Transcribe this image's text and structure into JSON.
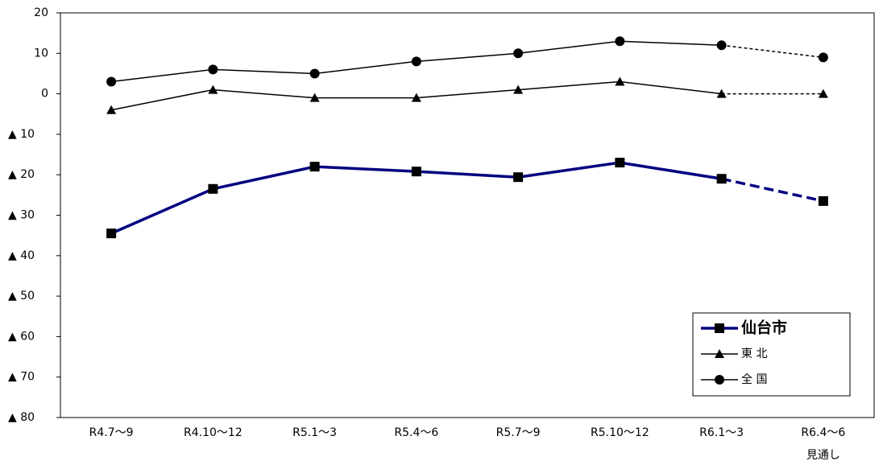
{
  "chart_data": {
    "type": "line",
    "categories": [
      "R4.7～9",
      "R4.10～12",
      "R5.1～3",
      "R5.4～6",
      "R5.7～9",
      "R5.10～12",
      "R6.1～3",
      "R6.4～6"
    ],
    "forecast_note": "見通し",
    "forecast_start": 6,
    "ylim": [
      -80,
      20
    ],
    "yticks": [
      20,
      10,
      0,
      {
        "value": -10,
        "label": "▲ 10"
      },
      {
        "value": -20,
        "label": "▲ 20"
      },
      {
        "value": -30,
        "label": "▲ 30"
      },
      {
        "value": -40,
        "label": "▲ 40"
      },
      {
        "value": -50,
        "label": "▲ 50"
      },
      {
        "value": -60,
        "label": "▲ 60"
      },
      {
        "value": -70,
        "label": "▲ 70"
      },
      {
        "value": -80,
        "label": "▲ 80"
      }
    ],
    "legend": "bottom-right",
    "series": [
      {
        "name": "仙台市",
        "color": "#000080",
        "marker": "square",
        "values": [
          -34.5,
          -23.5,
          -18,
          -19.2,
          -20.6,
          -17,
          -21,
          -26.5
        ]
      },
      {
        "name": "東 北",
        "color": "#000000",
        "marker": "triangle",
        "values": [
          -4,
          1,
          -1,
          -1,
          1,
          3,
          0,
          0
        ]
      },
      {
        "name": "全 国",
        "color": "#000000",
        "marker": "circle",
        "values": [
          3,
          6,
          5,
          8,
          10,
          13,
          12,
          9
        ]
      }
    ]
  }
}
